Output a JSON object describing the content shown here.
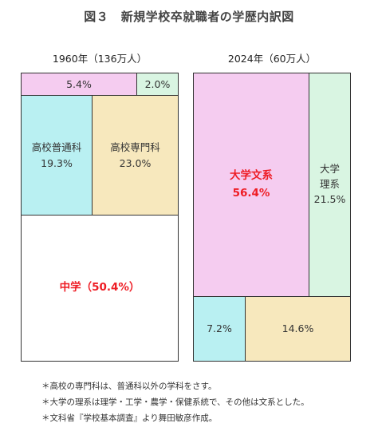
{
  "title": "図３　新規学校卒就職者の学歴内訳図",
  "colors": {
    "junior_high": "#ffffff",
    "hs_general": "#b9f0f2",
    "hs_vocational": "#f7e8bd",
    "univ_humanities": "#f5ccf0",
    "univ_science": "#d9f5e2",
    "emphasis_text": "#ee1c24"
  },
  "chart_data": [
    {
      "type": "treemap",
      "heading": "1960年（136万人）",
      "cells": [
        {
          "key": "univ_humanities",
          "label": "",
          "value": 5.4,
          "value_text": "5.4%"
        },
        {
          "key": "univ_science",
          "label": "",
          "value": 2.0,
          "value_text": "2.0%"
        },
        {
          "key": "hs_general",
          "label": "高校普通科",
          "value": 19.3,
          "value_text": "19.3%"
        },
        {
          "key": "hs_vocational",
          "label": "高校専門科",
          "value": 23.0,
          "value_text": "23.0%"
        },
        {
          "key": "junior_high",
          "label": "",
          "value": 50.4,
          "value_text": "中学（50.4%）"
        }
      ]
    },
    {
      "type": "treemap",
      "heading": "2024年（60万人）",
      "cells": [
        {
          "key": "univ_humanities",
          "label": "大学文系",
          "value": 56.4,
          "value_text": "56.4%"
        },
        {
          "key": "univ_science",
          "label": "大学理系",
          "value": 21.5,
          "value_text": "21.5%"
        },
        {
          "key": "hs_general",
          "label": "",
          "value": 7.2,
          "value_text": "7.2%"
        },
        {
          "key": "hs_vocational",
          "label": "",
          "value": 14.6,
          "value_text": "14.6%"
        }
      ]
    }
  ],
  "notes": [
    "＊高校の専門科は、普通科以外の学科をさす。",
    "＊大学の理系は理学・工学・農学・保健系統で、その他は文系とした。",
    "＊文科省『学校基本調査』より舞田敏彦作成。"
  ]
}
